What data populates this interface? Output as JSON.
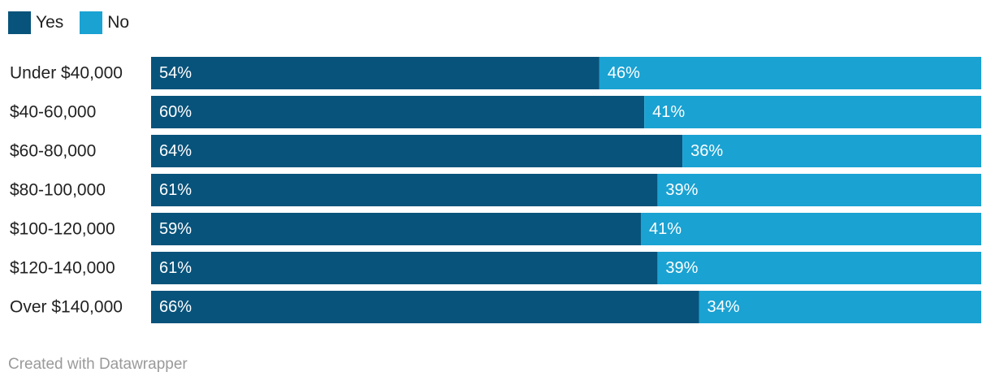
{
  "legend": {
    "yes_label": "Yes",
    "no_label": "No"
  },
  "colors": {
    "yes": "#08537b",
    "no": "#1aa2d2",
    "bar_label_text": "#ffffff",
    "category_text": "#222222"
  },
  "chart_data": {
    "type": "bar",
    "orientation": "horizontal",
    "stacked": true,
    "title": "",
    "xlabel": "",
    "ylabel": "",
    "grid": false,
    "legend_position": "top-left",
    "categories": [
      "Under $40,000",
      "$40-60,000",
      "$60-80,000",
      "$80-100,000",
      "$100-120,000",
      "$120-140,000",
      "Over $140,000"
    ],
    "series": [
      {
        "name": "Yes",
        "values": [
          54,
          60,
          64,
          61,
          59,
          61,
          66
        ],
        "labels": [
          "54%",
          "60%",
          "64%",
          "61%",
          "59%",
          "61%",
          "66%"
        ]
      },
      {
        "name": "No",
        "values": [
          46,
          41,
          36,
          39,
          41,
          39,
          34
        ],
        "labels": [
          "46%",
          "41%",
          "36%",
          "39%",
          "41%",
          "39%",
          "34%"
        ]
      }
    ]
  },
  "footer": {
    "credit": "Created with Datawrapper"
  }
}
